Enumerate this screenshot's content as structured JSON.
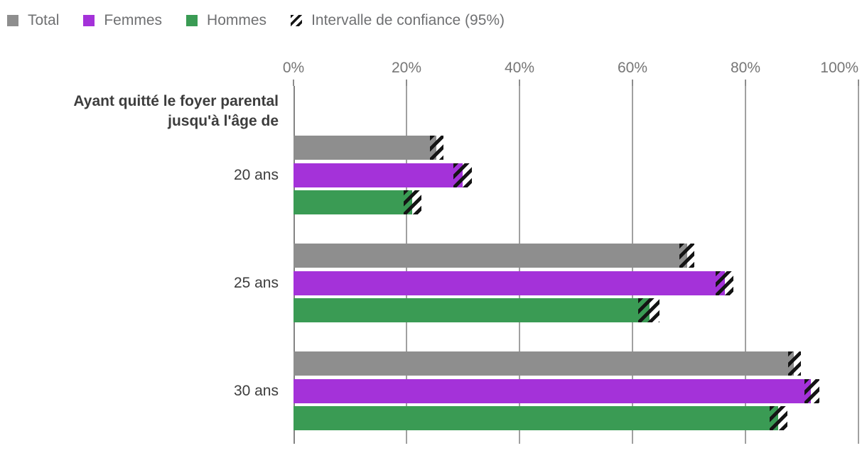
{
  "legend": {
    "items": [
      {
        "id": "total",
        "label": "Total",
        "type": "solid",
        "color": "#8e8e8e"
      },
      {
        "id": "femmes",
        "label": "Femmes",
        "type": "solid",
        "color": "#a432d9"
      },
      {
        "id": "hommes",
        "label": "Hommes",
        "type": "solid",
        "color": "#3a9b54"
      },
      {
        "id": "intervalle-de-confiance",
        "label": "Intervalle de confiance (95%)",
        "type": "hatch"
      }
    ]
  },
  "row_header": {
    "line1": "Ayant quitté le foyer parental",
    "line2": "jusqu'à l'âge de"
  },
  "chart_data": {
    "type": "bar",
    "orientation": "horizontal",
    "title": "",
    "xlabel": "",
    "ylabel": "Ayant quitté le foyer parental jusqu'à l'âge de",
    "categories": [
      "20 ans",
      "25 ans",
      "30 ans"
    ],
    "series": [
      {
        "name": "Total",
        "color": "#8e8e8e",
        "values": [
          25.3,
          69.7,
          88.6
        ],
        "ci_low": [
          24.2,
          68.3,
          87.5
        ],
        "ci_high": [
          26.5,
          71.0,
          89.8
        ]
      },
      {
        "name": "Femmes",
        "color": "#a432d9",
        "values": [
          29.9,
          76.4,
          91.6
        ],
        "ci_low": [
          28.3,
          74.7,
          90.4
        ],
        "ci_high": [
          31.6,
          77.9,
          93.1
        ]
      },
      {
        "name": "Hommes",
        "color": "#3a9b54",
        "values": [
          21.0,
          63.0,
          85.8
        ],
        "ci_low": [
          19.5,
          61.0,
          84.3
        ],
        "ci_high": [
          22.6,
          64.8,
          87.4
        ]
      }
    ],
    "ci_label": "Intervalle de confiance (95%)",
    "xlim": [
      0,
      100
    ],
    "x_ticks": [
      0,
      20,
      40,
      60,
      80,
      100
    ],
    "x_tick_labels": [
      "0%",
      "20%",
      "40%",
      "60%",
      "80%",
      "100%"
    ],
    "grid": true,
    "legend_position": "top",
    "colors": {
      "grid": "#a0a0a0",
      "axis_line": "#848484",
      "tick_text": "#767676",
      "legend_text": "#6f7072",
      "hatch": "#141414"
    }
  }
}
